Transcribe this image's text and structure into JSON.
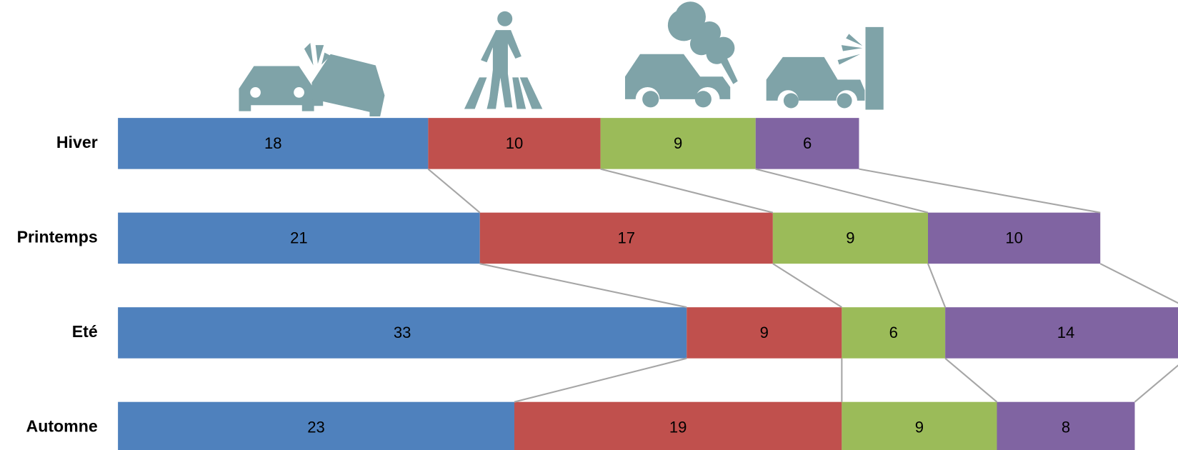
{
  "chart_data": {
    "type": "stacked-bar",
    "categories": [
      "Hiver",
      "Printemps",
      "Eté",
      "Automne"
    ],
    "series": [
      {
        "color": "#4f81bd",
        "values": [
          18,
          21,
          33,
          23
        ]
      },
      {
        "color": "#c0504d",
        "values": [
          10,
          17,
          9,
          19
        ]
      },
      {
        "color": "#9bbb59",
        "values": [
          9,
          9,
          6,
          9
        ]
      },
      {
        "color": "#8064a2",
        "values": [
          6,
          10,
          14,
          8
        ]
      }
    ]
  }
}
